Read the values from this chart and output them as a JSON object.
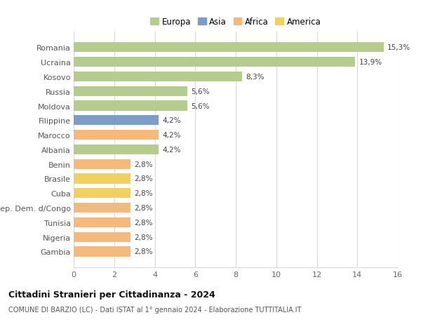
{
  "categories": [
    "Gambia",
    "Nigeria",
    "Tunisia",
    "Rep. Dem. d/Congo",
    "Cuba",
    "Brasile",
    "Benin",
    "Albania",
    "Marocco",
    "Filippine",
    "Moldova",
    "Russia",
    "Kosovo",
    "Ucraina",
    "Romania"
  ],
  "values": [
    2.8,
    2.8,
    2.8,
    2.8,
    2.8,
    2.8,
    2.8,
    4.2,
    4.2,
    4.2,
    5.6,
    5.6,
    8.3,
    13.9,
    15.3
  ],
  "labels": [
    "2,8%",
    "2,8%",
    "2,8%",
    "2,8%",
    "2,8%",
    "2,8%",
    "2,8%",
    "4,2%",
    "4,2%",
    "4,2%",
    "5,6%",
    "5,6%",
    "8,3%",
    "13,9%",
    "15,3%"
  ],
  "colors": [
    "#f4b97c",
    "#f4b97c",
    "#f4b97c",
    "#f4b97c",
    "#f0d060",
    "#f0d060",
    "#f4b97c",
    "#b5cc8e",
    "#f4b97c",
    "#7b9dc7",
    "#b5cc8e",
    "#b5cc8e",
    "#b5cc8e",
    "#b5cc8e",
    "#b5cc8e"
  ],
  "legend_labels": [
    "Europa",
    "Asia",
    "Africa",
    "America"
  ],
  "legend_colors": [
    "#b5cc8e",
    "#7b9dc7",
    "#f4b97c",
    "#f0d060"
  ],
  "title_bold": "Cittadini Stranieri per Cittadinanza - 2024",
  "subtitle": "COMUNE DI BARZIO (LC) - Dati ISTAT al 1° gennaio 2024 - Elaborazione TUTTITALIA.IT",
  "xlim": [
    0,
    16
  ],
  "xticks": [
    0,
    2,
    4,
    6,
    8,
    10,
    12,
    14,
    16
  ],
  "bg_color": "#ffffff",
  "grid_color": "#d8d8d8",
  "bar_height": 0.68
}
